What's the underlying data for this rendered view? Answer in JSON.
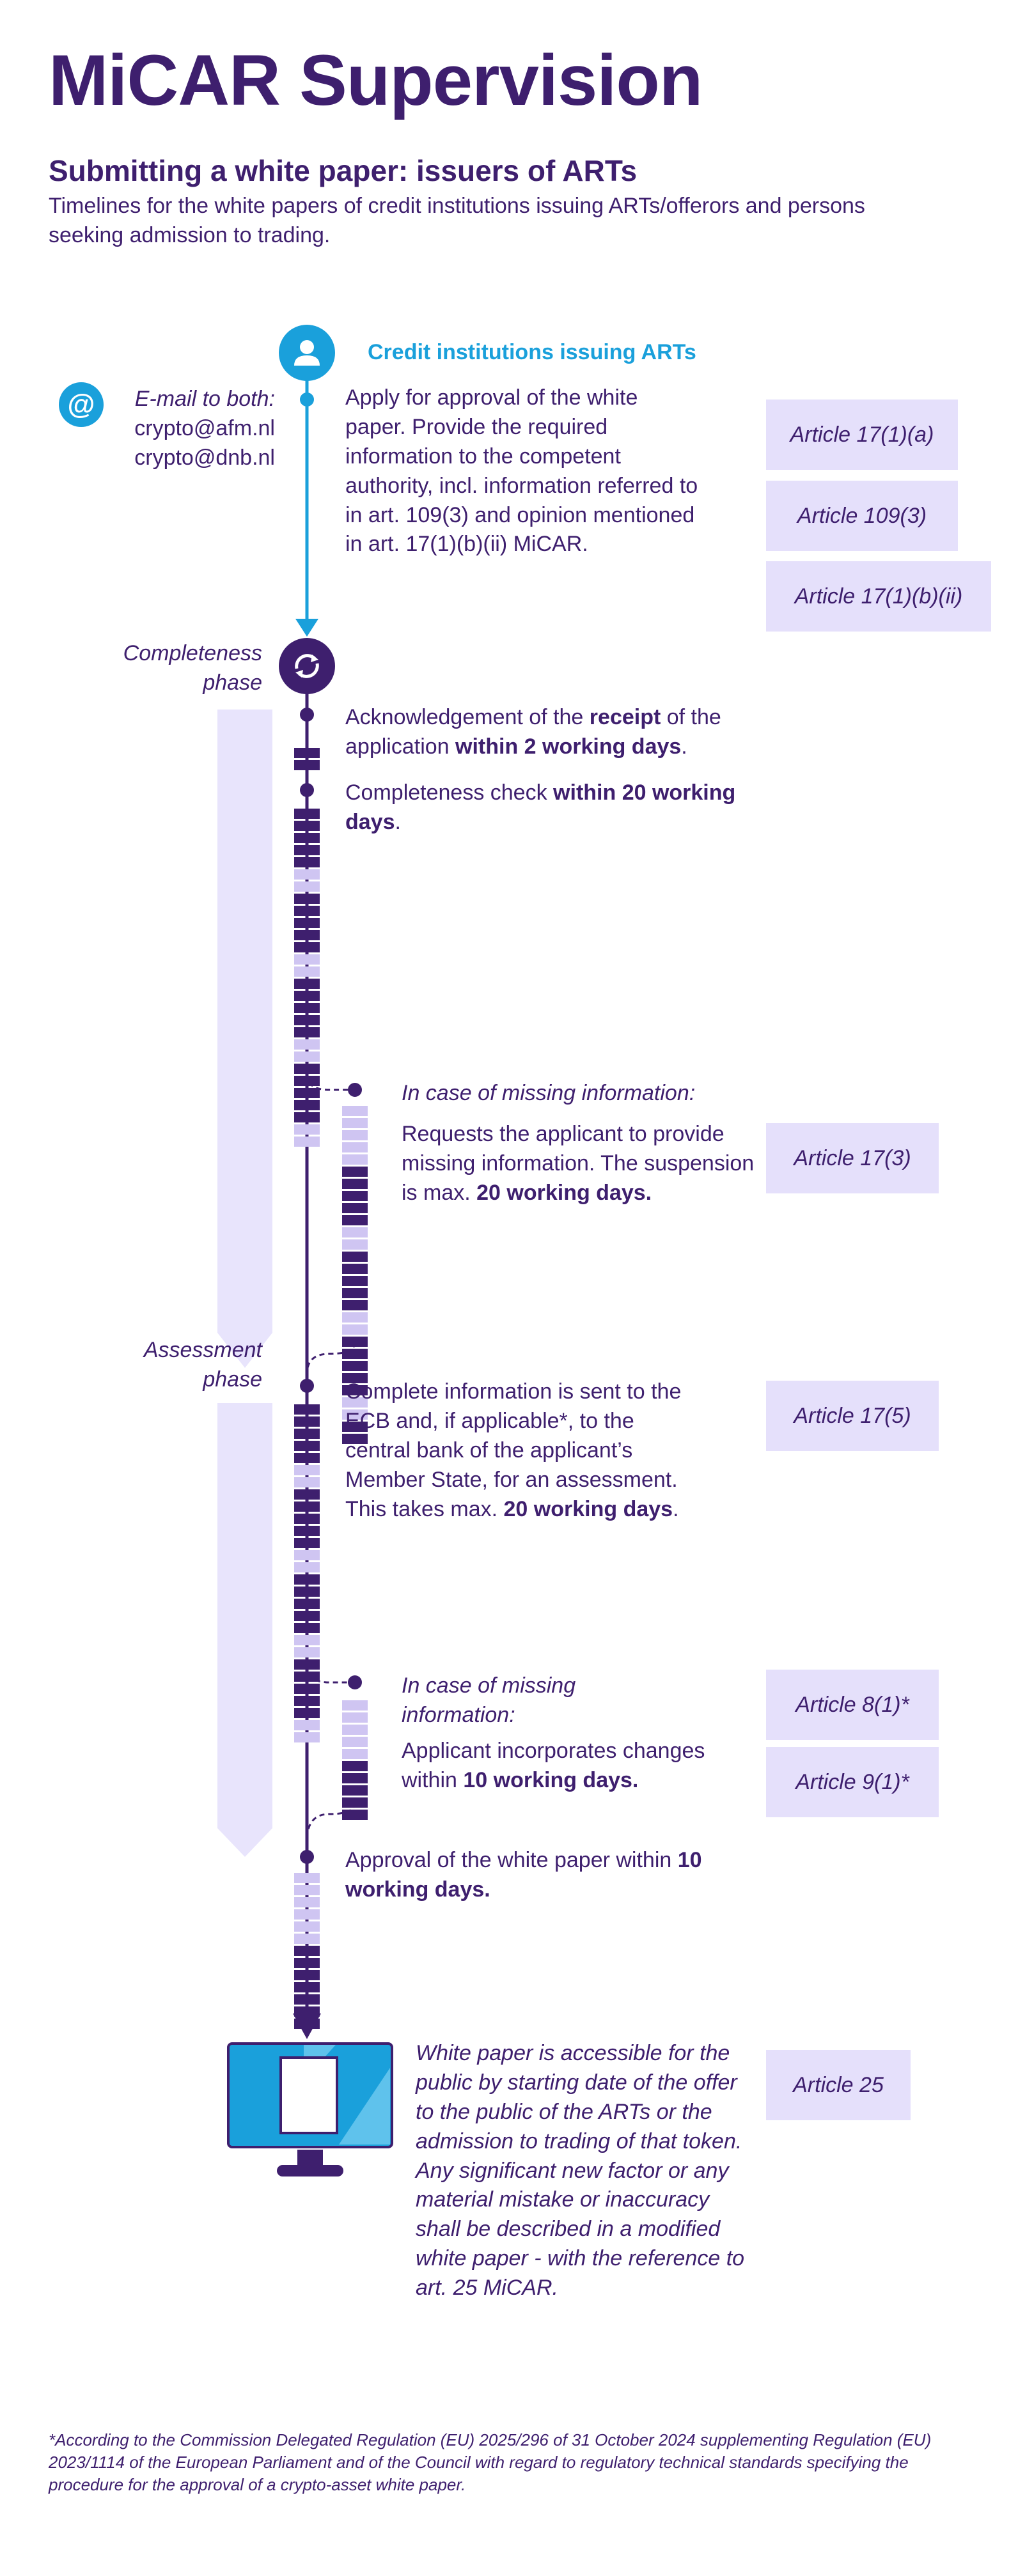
{
  "title": "MiCAR Supervision",
  "subtitle": "Submitting a white paper: issuers of ARTs",
  "intro": "Timelines for the white papers of credit institutions issuing ARTs/offerors and persons seeking admission to trading.",
  "actor": "Credit institutions issuing ARTs",
  "email": {
    "label": "E-mail to both:",
    "address1": "crypto@afm.nl",
    "address2": "crypto@dnb.nl"
  },
  "phases": {
    "completeness": [
      "Completeness",
      "phase"
    ],
    "assessment": [
      "Assessment",
      "phase"
    ]
  },
  "steps": {
    "apply": "Apply for approval of the white paper. Provide the required information to the competent authority, incl. information referred to in art. 109(3) and opinion mentioned in art. 17(1)(b)(ii) MiCAR.",
    "ack_pre": "Acknowledgement of the ",
    "ack_b1": "receipt",
    "ack_mid": " of the application ",
    "ack_b2": "within 2 working days",
    "ack_post": ".",
    "check_pre": "Completeness check ",
    "check_b": "within 20 working days",
    "check_post": ".",
    "missing1_title": "In case of missing information:",
    "missing1_pre": "Requests the applicant to provide missing information. The suspension is max. ",
    "missing1_b": "20 working days.",
    "complete_pre": "Complete information is sent to the ECB and, if applicable*, to the central bank of the applicant’s Member State, for an assessment. This takes max. ",
    "complete_b": "20 working days",
    "complete_post": ".",
    "missing2_title": "In case of missing information:",
    "missing2_pre": "Applicant incorporates changes within ",
    "missing2_b": "10 working days.",
    "approval_pre": "Approval of the white paper within ",
    "approval_b": "10 working days.",
    "final": "White paper is accessible for the public by starting date of the offer to the public of the ARTs or the admission to trading of that token. Any significant new factor or any material mistake or inaccuracy shall be described in a modified white paper - with the reference to art. 25 MiCAR."
  },
  "articles": {
    "a1": "Article 17(1)(a)",
    "a2": "Article 109(3)",
    "a3": "Article 17(1)(b)(ii)",
    "a4": "Article 17(3)",
    "a5": "Article 17(5)",
    "a6": "Article 8(1)*",
    "a7": "Article 9(1)*",
    "a8": "Article 25"
  },
  "footnote": "*According to the Commission Delegated Regulation (EU) 2025/296 of 31 October 2024 supplementing Regulation (EU) 2023/1114 of the European Parliament and of the Council with regard to regulatory technical standards specifying the procedure for the approval of a crypto-asset white paper.",
  "colors": {
    "dark_purple": "#3e1f6e",
    "light_purple": "#cfc5f2",
    "pale_purple": "#e8e4fc",
    "blue": "#1aa0db"
  },
  "icons": [
    "user-icon",
    "at-sign-icon",
    "sync-icon",
    "monitor-icon"
  ]
}
